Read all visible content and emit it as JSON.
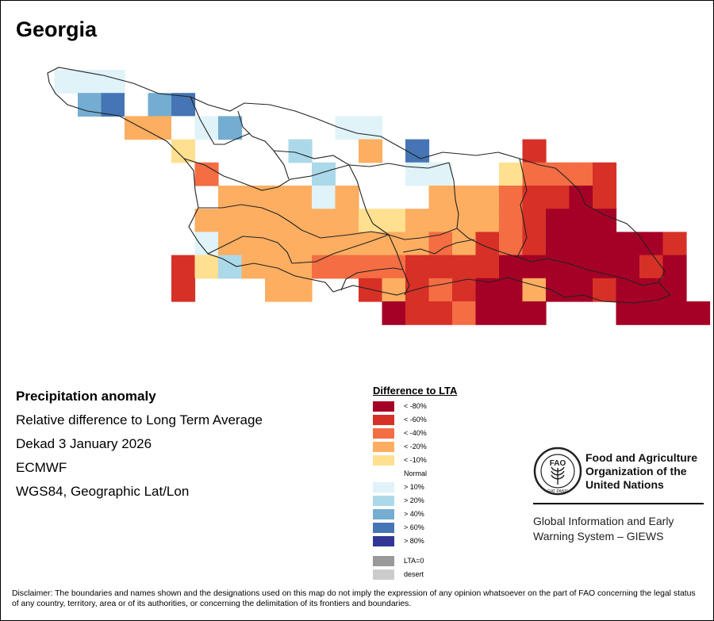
{
  "map": {
    "title": "Georgia",
    "grid_cols": 13,
    "grid_rows": 10,
    "grid_start_col": 1,
    "grid_start_row": 0,
    "cells": [
      [
        1,
        0,
        7
      ],
      [
        2,
        0,
        7
      ],
      [
        3,
        0,
        7
      ],
      [
        2,
        1,
        9
      ],
      [
        3,
        1,
        10
      ],
      [
        4,
        1,
        6
      ],
      [
        5,
        1,
        9
      ],
      [
        6,
        1,
        10
      ],
      [
        4,
        2,
        4
      ],
      [
        5,
        2,
        4
      ],
      [
        6,
        2,
        6
      ],
      [
        7,
        2,
        7
      ],
      [
        8,
        2,
        9
      ],
      [
        13,
        2,
        7
      ],
      [
        14,
        2,
        7
      ],
      [
        6,
        3,
        5
      ],
      [
        11,
        3,
        8
      ],
      [
        14,
        3,
        4
      ],
      [
        16,
        3,
        10
      ],
      [
        21,
        3,
        2
      ],
      [
        7,
        4,
        3
      ],
      [
        12,
        4,
        8
      ],
      [
        16,
        4,
        7
      ],
      [
        17,
        4,
        7
      ],
      [
        18,
        4,
        6
      ],
      [
        20,
        4,
        5
      ],
      [
        21,
        4,
        3
      ],
      [
        22,
        4,
        3
      ],
      [
        23,
        4,
        3
      ],
      [
        24,
        4,
        2
      ],
      [
        8,
        5,
        4
      ],
      [
        9,
        5,
        4
      ],
      [
        10,
        5,
        4
      ],
      [
        11,
        5,
        4
      ],
      [
        12,
        5,
        7
      ],
      [
        13,
        5,
        4
      ],
      [
        17,
        5,
        4
      ],
      [
        18,
        5,
        4
      ],
      [
        19,
        5,
        4
      ],
      [
        20,
        5,
        3
      ],
      [
        21,
        5,
        2
      ],
      [
        22,
        5,
        2
      ],
      [
        23,
        5,
        1
      ],
      [
        24,
        5,
        2
      ],
      [
        7,
        6,
        4
      ],
      [
        8,
        6,
        4
      ],
      [
        9,
        6,
        4
      ],
      [
        10,
        6,
        4
      ],
      [
        11,
        6,
        4
      ],
      [
        12,
        6,
        4
      ],
      [
        13,
        6,
        4
      ],
      [
        14,
        6,
        5
      ],
      [
        15,
        6,
        5
      ],
      [
        16,
        6,
        4
      ],
      [
        17,
        6,
        4
      ],
      [
        18,
        6,
        4
      ],
      [
        19,
        6,
        4
      ],
      [
        20,
        6,
        3
      ],
      [
        21,
        6,
        2
      ],
      [
        22,
        6,
        1
      ],
      [
        23,
        6,
        1
      ],
      [
        24,
        6,
        1
      ],
      [
        7,
        7,
        7
      ],
      [
        8,
        7,
        4
      ],
      [
        9,
        7,
        4
      ],
      [
        10,
        7,
        4
      ],
      [
        11,
        7,
        4
      ],
      [
        12,
        7,
        4
      ],
      [
        13,
        7,
        4
      ],
      [
        14,
        7,
        4
      ],
      [
        15,
        7,
        4
      ],
      [
        16,
        7,
        4
      ],
      [
        17,
        7,
        3
      ],
      [
        18,
        7,
        4
      ],
      [
        19,
        7,
        2
      ],
      [
        20,
        7,
        3
      ],
      [
        21,
        7,
        2
      ],
      [
        22,
        7,
        1
      ],
      [
        23,
        7,
        1
      ],
      [
        24,
        7,
        1
      ],
      [
        25,
        7,
        1
      ],
      [
        26,
        7,
        1
      ],
      [
        27,
        7,
        2
      ],
      [
        6,
        8,
        2
      ],
      [
        7,
        8,
        5
      ],
      [
        8,
        8,
        8
      ],
      [
        9,
        8,
        4
      ],
      [
        10,
        8,
        4
      ],
      [
        11,
        8,
        4
      ],
      [
        12,
        8,
        3
      ],
      [
        13,
        8,
        3
      ],
      [
        14,
        8,
        3
      ],
      [
        15,
        8,
        3
      ],
      [
        16,
        8,
        2
      ],
      [
        17,
        8,
        2
      ],
      [
        18,
        8,
        2
      ],
      [
        19,
        8,
        2
      ],
      [
        20,
        8,
        1
      ],
      [
        21,
        8,
        1
      ],
      [
        22,
        8,
        1
      ],
      [
        23,
        8,
        1
      ],
      [
        24,
        8,
        1
      ],
      [
        25,
        8,
        1
      ],
      [
        26,
        8,
        2
      ],
      [
        27,
        8,
        1
      ],
      [
        6,
        9,
        2
      ],
      [
        10,
        9,
        4
      ],
      [
        11,
        9,
        4
      ],
      [
        14,
        9,
        2
      ],
      [
        15,
        9,
        4
      ],
      [
        16,
        9,
        2
      ],
      [
        17,
        9,
        3
      ],
      [
        18,
        9,
        2
      ],
      [
        19,
        9,
        1
      ],
      [
        20,
        9,
        1
      ],
      [
        21,
        9,
        4
      ],
      [
        22,
        9,
        1
      ],
      [
        23,
        9,
        1
      ],
      [
        24,
        9,
        2
      ],
      [
        25,
        9,
        1
      ],
      [
        26,
        9,
        1
      ],
      [
        27,
        9,
        1
      ],
      [
        15,
        10,
        1
      ],
      [
        16,
        10,
        2
      ],
      [
        17,
        10,
        2
      ],
      [
        18,
        10,
        3
      ],
      [
        19,
        10,
        1
      ],
      [
        20,
        10,
        1
      ],
      [
        21,
        10,
        1
      ],
      [
        25,
        10,
        1
      ],
      [
        26,
        10,
        1
      ],
      [
        27,
        10,
        1
      ],
      [
        28,
        10,
        1
      ]
    ]
  },
  "info": {
    "line1": "Precipitation anomaly",
    "line2": "Relative difference to Long Term Average",
    "line3": "Dekad 3 January 2026",
    "line4": "ECMWF",
    "line5": "WGS84, Geographic Lat/Lon"
  },
  "legend": {
    "title": "Difference to LTA",
    "items": [
      {
        "label": "< -80%",
        "color": "#a50026"
      },
      {
        "label": "< -60%",
        "color": "#d73027"
      },
      {
        "label": "< -40%",
        "color": "#f46d43"
      },
      {
        "label": "< -20%",
        "color": "#fdae61"
      },
      {
        "label": "< -10%",
        "color": "#fee090"
      },
      {
        "label": "Normal",
        "color": "#ffffff"
      },
      {
        "label": "> 10%",
        "color": "#e0f3f8"
      },
      {
        "label": "> 20%",
        "color": "#abd9e9"
      },
      {
        "label": "> 40%",
        "color": "#74add1"
      },
      {
        "label": "> 60%",
        "color": "#4575b4"
      },
      {
        "label": "> 80%",
        "color": "#313695"
      }
    ],
    "extra": [
      {
        "label": "LTA=0",
        "color": "#999999"
      },
      {
        "label": "desert",
        "color": "#cccccc"
      }
    ]
  },
  "org": {
    "name1": "Food and Agriculture",
    "name2": "Organization of the",
    "name3": "United Nations",
    "giews1": "Global Information and Early",
    "giews2": "Warning System – GIEWS",
    "logo_text": "FAO",
    "logo_ring": "FIAT PANIS"
  },
  "disclaimer": "Disclaimer: The boundaries and names shown and the designations used on this map do not imply the expression of any opinion whatsoever on the part of FAO concerning the legal status of any country, territory, area or of its authorities, or concerning the delimitation of its frontiers and boundaries."
}
